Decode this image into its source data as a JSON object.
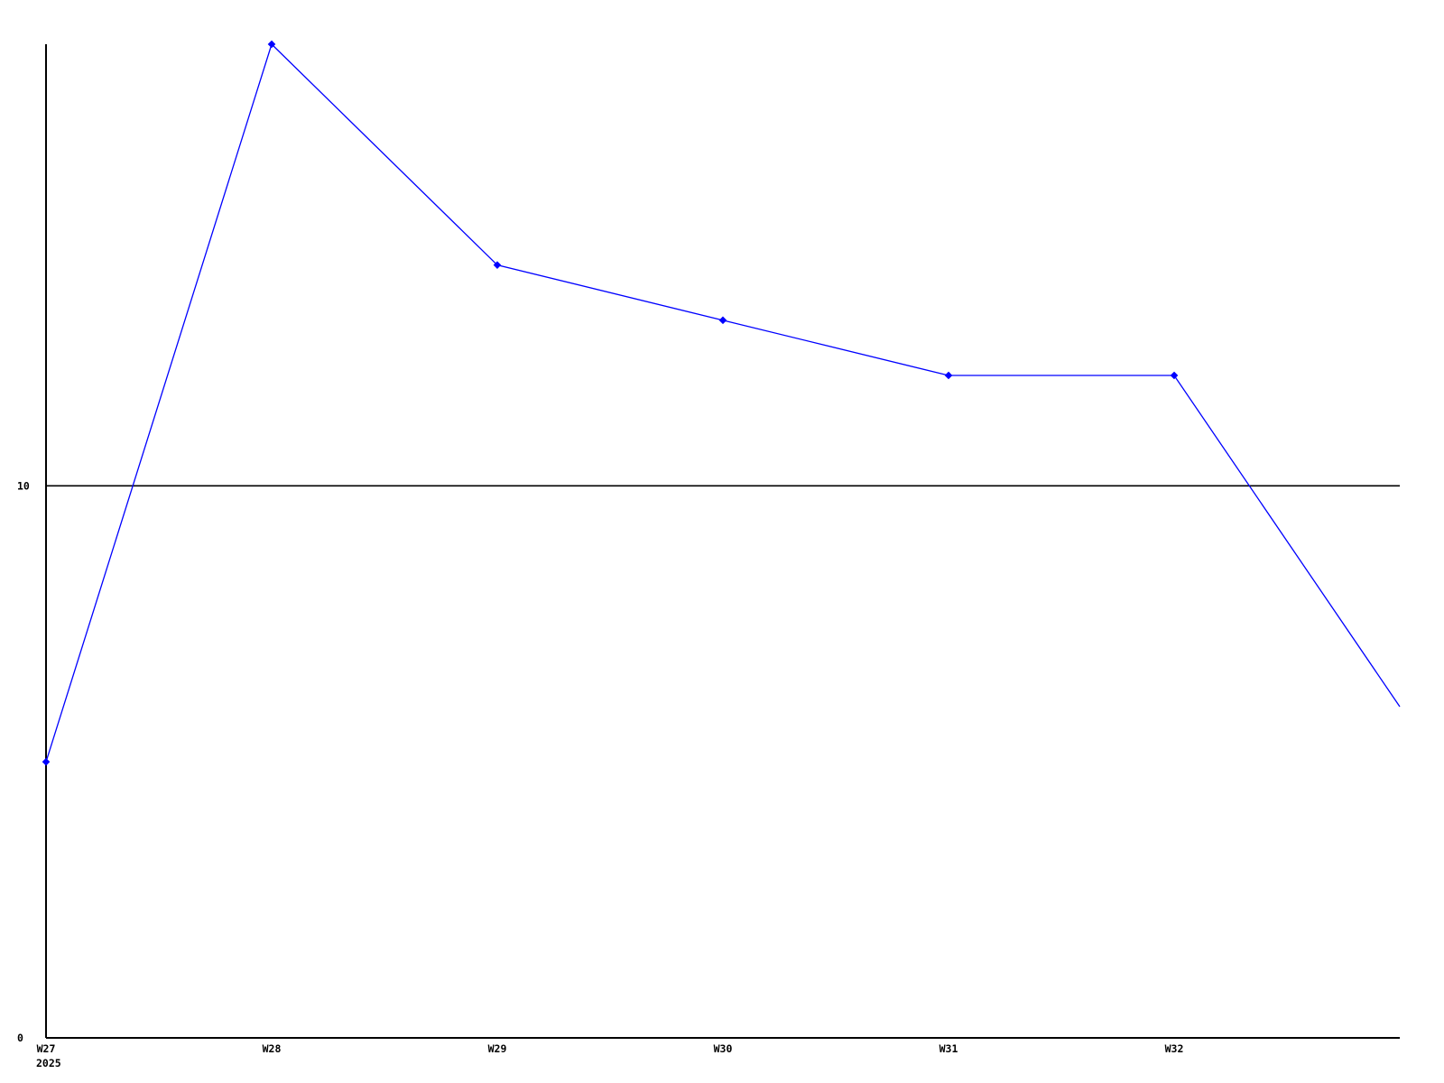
{
  "chart_data": {
    "type": "line",
    "title": "",
    "xlabel": "",
    "ylabel": "",
    "x_tick_labels": [
      "W27",
      "W28",
      "W29",
      "W30",
      "W31",
      "W32"
    ],
    "x_axis_year_label": "2025",
    "num_points": 7,
    "values": [
      5,
      18,
      14,
      13,
      12,
      12,
      6
    ],
    "note_last_point": "seventh point lies one tick-spacing right of W32, unlabeled, no marker, line clipped at plot edge",
    "ylim": [
      0,
      18
    ],
    "y_ticks": [
      {
        "value": 0,
        "label": "0",
        "gridline": false
      },
      {
        "value": 10,
        "label": "10",
        "gridline": true
      }
    ],
    "grid": "single horizontal black line at y=10",
    "legend": "none",
    "marker": "diamond",
    "colors": {
      "line": "#0000ff",
      "marker": "#0000ff",
      "axis": "#000000",
      "gridline": "#000000",
      "background": "#ffffff",
      "text": "#000000"
    }
  }
}
